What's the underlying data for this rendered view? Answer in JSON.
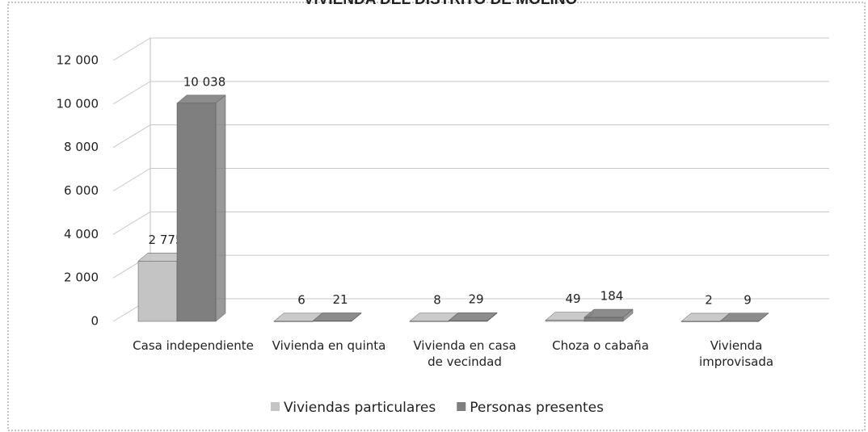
{
  "chart_data": {
    "type": "bar3d",
    "title": "VIVIENDA DEL DISTRITO DE MOLINO",
    "categories": [
      "Casa independiente",
      "Vivienda en quinta",
      "Vivienda en casa de vecindad",
      "Choza o cabaña",
      "Vivienda improvisada"
    ],
    "series": [
      {
        "name": "Viviendas particulares",
        "color": "#c4c4c4",
        "values": [
          2775,
          6,
          8,
          49,
          2
        ],
        "value_labels": [
          "2 775",
          "6",
          "8",
          "49",
          "2"
        ]
      },
      {
        "name": "Personas presentes",
        "color": "#7f7f7f",
        "values": [
          10038,
          21,
          29,
          184,
          9
        ],
        "value_labels": [
          "10 038",
          "21",
          "29",
          "184",
          "9"
        ]
      }
    ],
    "ylim": [
      0,
      12000
    ],
    "yticks": [
      0,
      {
        "value": 2000,
        "label": "2 000"
      },
      {
        "value": 4000,
        "label": "4 000"
      },
      {
        "value": 6000,
        "label": "6 000"
      },
      {
        "value": 8000,
        "label": "8 000"
      },
      {
        "value": 10000,
        "label": "10 000"
      },
      {
        "value": 12000,
        "label": "12 000"
      }
    ],
    "grid": true,
    "legend": "bottom"
  }
}
